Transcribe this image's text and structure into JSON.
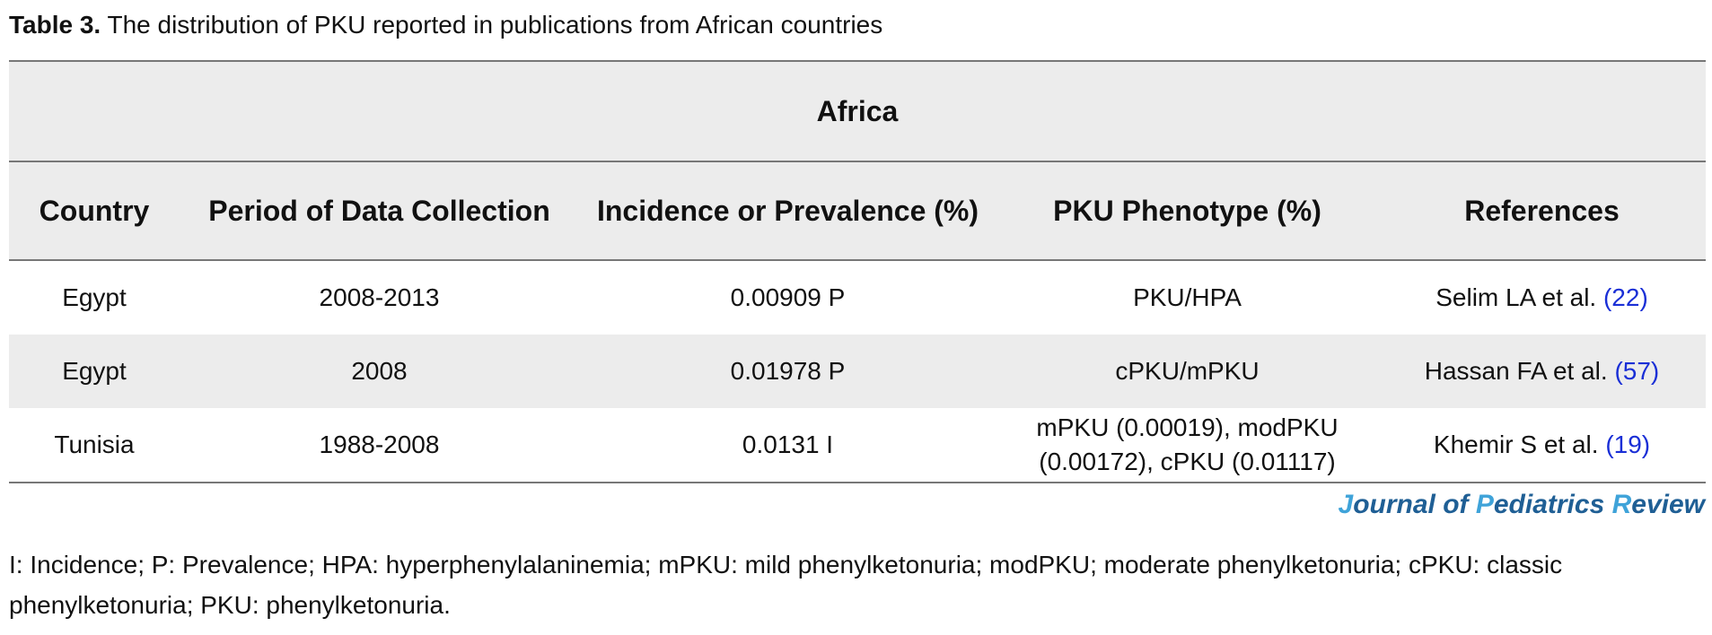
{
  "caption": {
    "label": "Table 3.",
    "text": "The distribution of PKU reported in publications from African countries"
  },
  "table": {
    "region": "Africa",
    "headers": [
      "Country",
      "Period of Data Collection",
      "Incidence or Prevalence (%)",
      "PKU Phenotype (%)",
      "References"
    ],
    "rows": [
      {
        "country": "Egypt",
        "period": "2008-2013",
        "value": "0.00909 P",
        "phenotype": "PKU/HPA",
        "ref_author": "Selim LA et al.",
        "ref_num": "(22)"
      },
      {
        "country": "Egypt",
        "period": "2008",
        "value": "0.01978 P",
        "phenotype": "cPKU/mPKU",
        "ref_author": "Hassan FA et al.",
        "ref_num": "(57)"
      },
      {
        "country": "Tunisia",
        "period": "1988-2008",
        "value": "0.0131 I",
        "phenotype": "mPKU (0.00019), modPKU (0.00172), cPKU (0.01117)",
        "ref_author": "Khemir S et al.",
        "ref_num": "(19)"
      }
    ]
  },
  "journal": {
    "j": "J",
    "ournal_of": "ournal of ",
    "p": "P",
    "ediatrics": "ediatrics ",
    "r": "R",
    "eview": "eview"
  },
  "footnote": "I: Incidence; P: Prevalence; HPA: hyperphenylalaninemia; mPKU: mild phenylketonuria; modPKU; moderate phenylketonuria; cPKU: classic phenylketonuria; PKU: phenylketonuria."
}
